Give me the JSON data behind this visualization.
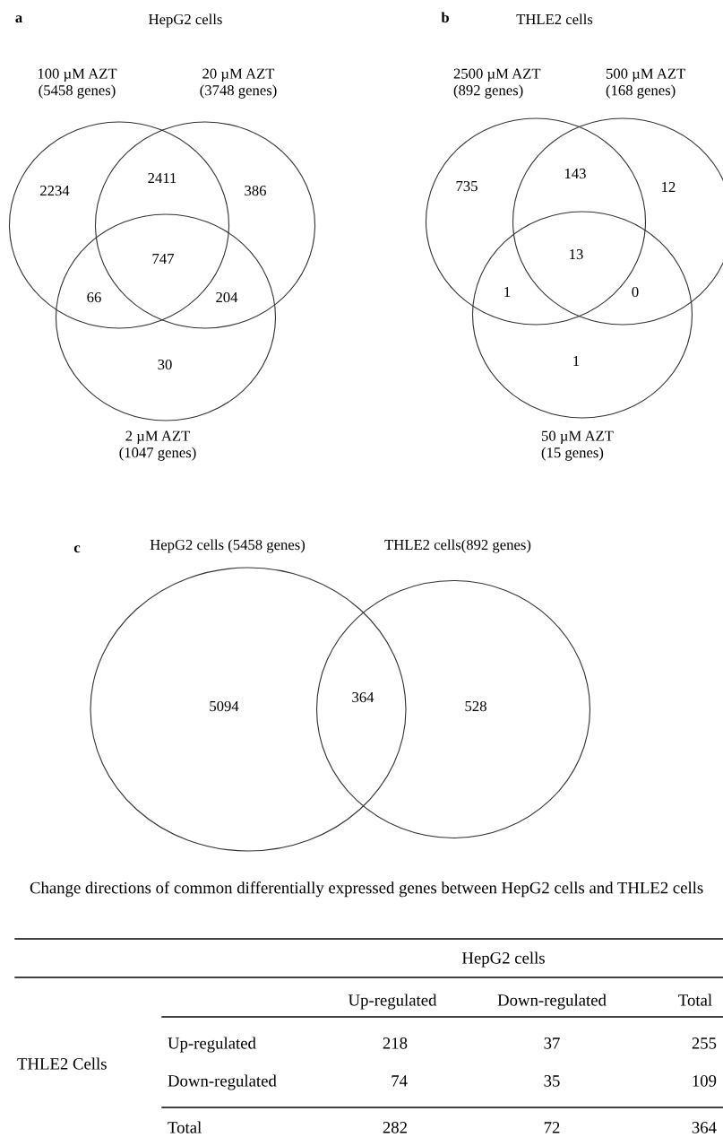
{
  "chart_data": [
    {
      "type": "other",
      "title": "HepG2 cells",
      "data_labels": true,
      "annotations": [
        "a",
        "100 µM AZT\n(5458 genes)",
        "20 µM AZT\n(3748 genes)",
        "2 µM AZT\n(1047 genes)"
      ],
      "categories": [
        null,
        null,
        null,
        null,
        null,
        null,
        null
      ],
      "values": [
        2234,
        2411,
        386,
        747,
        66,
        204,
        30
      ]
    },
    {
      "type": "other",
      "title": "THLE2 cells",
      "data_labels": true,
      "annotations": [
        "b",
        "2500 µM AZT\n(892 genes)",
        "500 µM AZT\n(168 genes)",
        "50 µM AZT\n(15 genes)"
      ],
      "categories": [
        null,
        null,
        null,
        null,
        null,
        null,
        null
      ],
      "values": [
        735,
        143,
        12,
        13,
        1,
        0,
        1
      ]
    },
    {
      "type": "other",
      "data_labels": true,
      "annotations": [
        "c",
        "HepG2 cells (5458 genes)",
        "THLE2 cells(892 genes)"
      ],
      "categories": [
        null,
        null,
        null
      ],
      "values": [
        5094,
        364,
        528
      ]
    },
    {
      "type": "other",
      "title": "Change directions of common differentially expressed genes between HepG2 cells and THLE2 cells",
      "xlabel": "HepG2 cells",
      "ylabel": "THLE2 Cells",
      "data_labels": true,
      "categories": [
        "Up-regulated",
        "Down-regulated",
        "Total"
      ],
      "series": [
        {
          "name": "Up-regulated",
          "values": [
            218,
            37,
            255
          ]
        },
        {
          "name": "Down-regulated",
          "values": [
            74,
            35,
            109
          ]
        },
        {
          "name": "Total",
          "values": [
            282,
            72,
            364
          ]
        }
      ]
    }
  ]
}
